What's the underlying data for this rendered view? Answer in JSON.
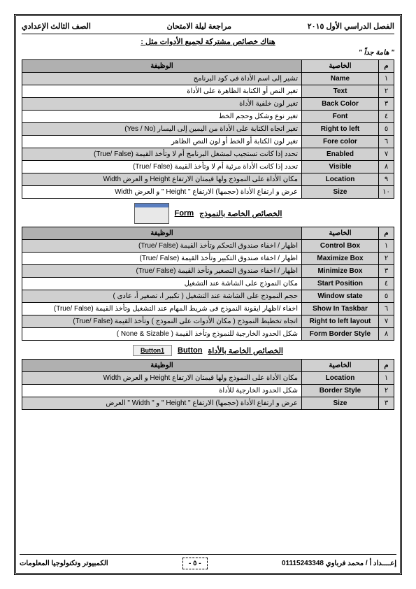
{
  "header": {
    "right": "الفصل الدراسي الأول ٢٠١٥",
    "center": "مراجعة ليلة الامتحان",
    "left": "الصف الثالث الإعدادي"
  },
  "intro": "هناك خصائص مشتركة لجميع الأدوات مثل :",
  "note": "\" هامة جداً \"",
  "table1": {
    "headers": {
      "num": "م",
      "prop": "الخاصية",
      "desc": "الوظيفة"
    },
    "rows": [
      {
        "n": "١",
        "p": "Name",
        "d": "تشير إلى اسم الأداة فى كود البرنامج"
      },
      {
        "n": "٢",
        "p": "Text",
        "d": "تغير النص أو الكتابة الظاهرة على الأداة"
      },
      {
        "n": "٣",
        "p": "Back Color",
        "d": "تغير لون خلفية الأداة"
      },
      {
        "n": "٤",
        "p": "Font",
        "d": "تغير نوع وشكل وحجم الخط"
      },
      {
        "n": "٥",
        "p": "Right to left",
        "d": "تغير اتجاه الكتابة على الأداة من اليمين إلى اليسار (Yes / No)"
      },
      {
        "n": "٦",
        "p": "Fore color",
        "d": "تغير لون الكتابة أو الخط أو لون النص الظاهر"
      },
      {
        "n": "٧",
        "p": "Enabled",
        "d": "تحدد إذا كانت تستجيب لمشغل البرنامج أم لا وتأخذ القيمة (True/ False)"
      },
      {
        "n": "٨",
        "p": "Visible",
        "d": "تحدد إذا كانت الأداة مرئية أم لا وتأخذ القيمة (True/ False)"
      },
      {
        "n": "٩",
        "p": "Location",
        "d": "مكان الأداة على النموذج ولها قيمتان الارتفاع Height و العرض Width"
      },
      {
        "n": "١٠",
        "p": "Size",
        "d": "عرض و ارتفاع الأداة (حجمها) الارتفاع \" Height \" و العرض Width"
      }
    ]
  },
  "section_form": {
    "title_ar": "الخصائص الخاصة بالنموذج",
    "title_en": "Form"
  },
  "table2": {
    "headers": {
      "num": "م",
      "prop": "الخاصية",
      "desc": "الوظيفة"
    },
    "rows": [
      {
        "n": "١",
        "p": "Control Box",
        "d": "اظهار / اخفاء صندوق التحكم وتأخذ القيمة (True/ False)"
      },
      {
        "n": "٢",
        "p": "Maximize Box",
        "d": "اظهار / اخفاء صندوق التكبير وتأخذ القيمة (True/ False)"
      },
      {
        "n": "٣",
        "p": "Minimize Box",
        "d": "اظهار / اخفاء صندوق التصغير وتأخذ القيمة (True/ False)"
      },
      {
        "n": "٤",
        "p": "Start Position",
        "d": "مكان النموذج على الشاشة عند التشغيل"
      },
      {
        "n": "٥",
        "p": "Window state",
        "d": "حجم النموذج على الشاشة عند التشغيل ( تكبير ا، تصغير أ، عادى )"
      },
      {
        "n": "٦",
        "p": "Show In Taskbar",
        "d": "اخفاء /اظهار ايقونة النموذج فى شريط المهام عند التشغيل وتأخذ القيمة (True/ False)"
      },
      {
        "n": "٧",
        "p": "Right to left layout",
        "d": "اتجاه تخطيط النموذج ( مكان الأدوات على النموذج ) وتأخذ القيمة (True/ False)"
      },
      {
        "n": "٨",
        "p": "Form Border Style",
        "d": "شكل الحدود الخارجية للنموذج وتأخذ القيمة ( None & Sizable )"
      }
    ]
  },
  "section_button": {
    "title_ar": "الخصائص الخاصة بالأداة",
    "title_en": "Button",
    "icon_label": "Button1"
  },
  "table3": {
    "headers": {
      "num": "م",
      "prop": "الخاصية",
      "desc": "الوظيفة"
    },
    "rows": [
      {
        "n": "١",
        "p": "Location",
        "d": "مكان الأداة على النموذج ولها قيمتان الارتفاع Height و العرض Width"
      },
      {
        "n": "٢",
        "p": "Border Style",
        "d": "شكل الحدود الخارجية للأداة"
      },
      {
        "n": "٣",
        "p": "Size",
        "d": "عرض و ارتفاع الأداة (حجمها) الارتفاع \" Height \" و \" Width \" العرض"
      }
    ]
  },
  "footer": {
    "right": "إعــــداد أ / محمد فرباوي 01115243348",
    "page": "- ٥ -",
    "left": "الكمبيوتر وتكنولوجيا المعلومات"
  }
}
